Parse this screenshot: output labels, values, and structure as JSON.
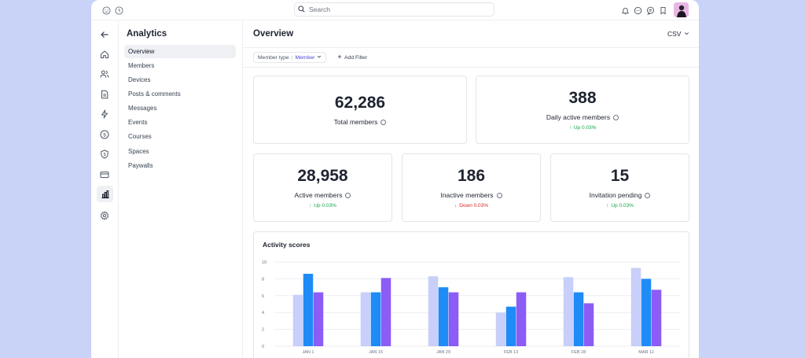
{
  "topbar": {
    "search_placeholder": "Search",
    "icons": [
      "smile-icon",
      "history-icon",
      "bell-icon",
      "chat-icon",
      "message-icon",
      "bookmark-icon"
    ]
  },
  "rail": {
    "icons": [
      "back-arrow-icon",
      "home-icon",
      "users-icon",
      "document-icon",
      "bolt-icon",
      "dollar-icon",
      "shield-dollar-icon",
      "card-icon",
      "chart-icon",
      "gear-icon"
    ],
    "active": "chart-icon"
  },
  "subnav": {
    "title": "Analytics",
    "items": [
      "Overview",
      "Members",
      "Devices",
      "Posts & comments",
      "Messages",
      "Events",
      "Courses",
      "Spaces",
      "Paywalls"
    ],
    "active_index": 0
  },
  "main": {
    "title": "Overview",
    "export_label": "CSV",
    "filter": {
      "key": "Member type",
      "value": "Member"
    },
    "add_filter_label": "Add Filter"
  },
  "stats": [
    {
      "value": "62,286",
      "label": "Total members"
    },
    {
      "value": "388",
      "label": "Daily active members",
      "trend": "Up 0.03%",
      "direction": "up"
    },
    {
      "value": "28,958",
      "label": "Active members",
      "trend": "Up 0.03%",
      "direction": "up"
    },
    {
      "value": "186",
      "label": "Inactive members",
      "trend": "Down 0.03%",
      "direction": "down"
    },
    {
      "value": "15",
      "label": "Invitation pending",
      "trend": "Up 0.03%",
      "direction": "up"
    }
  ],
  "colors": {
    "background": "#c9d2f7",
    "up": "#16a34a",
    "down": "#dc2626",
    "bar1": "#c7cffa",
    "bar2": "#1e8bf7",
    "bar3": "#8b5cf6"
  },
  "chart_data": {
    "type": "bar",
    "title": "Activity scores",
    "categories": [
      "JAN 1",
      "JAN 15",
      "JAN 29",
      "FEB 13",
      "FEB 28",
      "MAR 11"
    ],
    "yticks": [
      "0",
      "2",
      "4",
      "6",
      "8",
      "10"
    ],
    "ylim": [
      0,
      10
    ],
    "grid": true,
    "series": [
      {
        "values": [
          6.1,
          6.4,
          8.3,
          4.0,
          8.2,
          9.3
        ]
      },
      {
        "values": [
          8.6,
          6.4,
          7.0,
          4.7,
          6.4,
          8.0
        ]
      },
      {
        "values": [
          6.4,
          8.1,
          6.4,
          6.4,
          5.1,
          6.7
        ]
      }
    ]
  }
}
